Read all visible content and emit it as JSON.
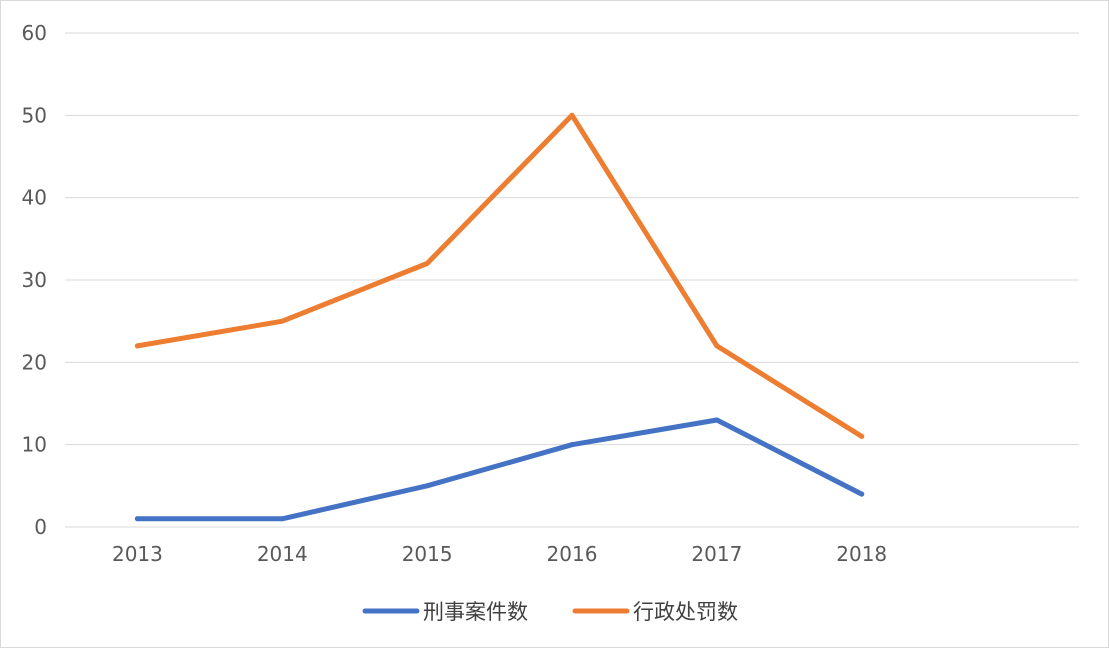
{
  "chart_data": {
    "type": "line",
    "title": "",
    "xlabel": "",
    "ylabel": "",
    "categories": [
      "2013",
      "2014",
      "2015",
      "2016",
      "2017",
      "2018"
    ],
    "extra_empty_categories": 1,
    "ylim": [
      0,
      60
    ],
    "yticks": [
      0,
      10,
      20,
      30,
      40,
      50,
      60
    ],
    "grid": "horizontal",
    "legend_position": "bottom",
    "series": [
      {
        "name": "刑事案件数",
        "color": "#4472C4",
        "values": [
          1,
          1,
          5,
          10,
          13,
          4
        ]
      },
      {
        "name": "行政处罚数",
        "color": "#ED7D31",
        "values": [
          22,
          25,
          32,
          50,
          22,
          11
        ]
      }
    ]
  }
}
